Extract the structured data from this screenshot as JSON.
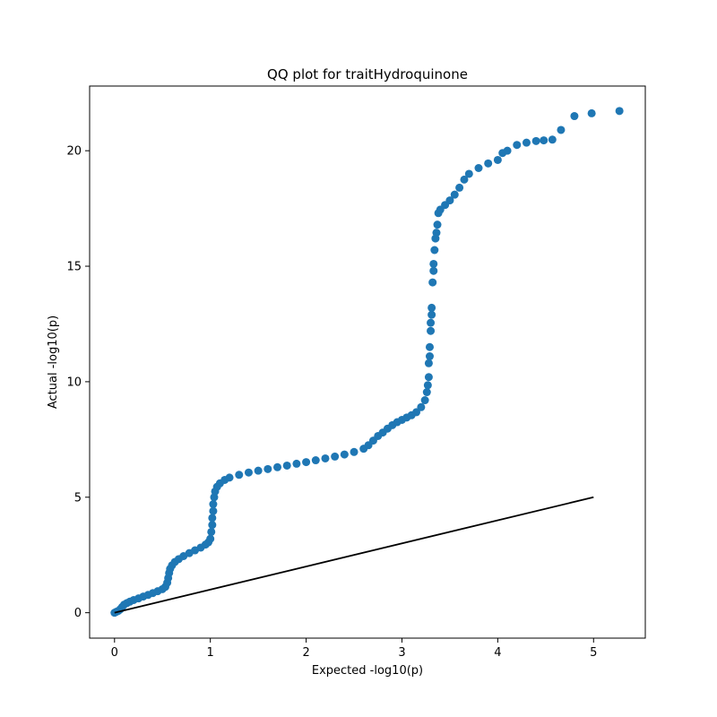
{
  "chart_data": {
    "type": "scatter",
    "title": "QQ plot for traitHydroquinone",
    "xlabel": "Expected -log10(p)",
    "ylabel": "Actual -log10(p)",
    "xlim": [
      -0.26,
      5.54
    ],
    "ylim": [
      -1.1,
      22.8
    ],
    "xticks": [
      0,
      1,
      2,
      3,
      4,
      5
    ],
    "yticks": [
      0,
      5,
      10,
      15,
      20
    ],
    "grid": false,
    "legend": "none",
    "colors": {
      "points": "#1f77b4",
      "reference_line": "#000000",
      "axes": "#000000"
    },
    "reference_line": {
      "x": [
        0,
        5
      ],
      "y": [
        0,
        5
      ]
    },
    "series": [
      {
        "points": [
          [
            0.0,
            0.0
          ],
          [
            0.02,
            0.04
          ],
          [
            0.04,
            0.08
          ],
          [
            0.06,
            0.15
          ],
          [
            0.08,
            0.25
          ],
          [
            0.1,
            0.35
          ],
          [
            0.13,
            0.42
          ],
          [
            0.16,
            0.48
          ],
          [
            0.2,
            0.55
          ],
          [
            0.25,
            0.62
          ],
          [
            0.3,
            0.7
          ],
          [
            0.35,
            0.77
          ],
          [
            0.4,
            0.85
          ],
          [
            0.45,
            0.93
          ],
          [
            0.5,
            1.02
          ],
          [
            0.53,
            1.12
          ],
          [
            0.55,
            1.3
          ],
          [
            0.56,
            1.5
          ],
          [
            0.57,
            1.72
          ],
          [
            0.58,
            1.9
          ],
          [
            0.6,
            2.05
          ],
          [
            0.63,
            2.2
          ],
          [
            0.67,
            2.32
          ],
          [
            0.72,
            2.45
          ],
          [
            0.78,
            2.58
          ],
          [
            0.84,
            2.7
          ],
          [
            0.9,
            2.82
          ],
          [
            0.95,
            2.95
          ],
          [
            0.98,
            3.05
          ],
          [
            1.0,
            3.2
          ],
          [
            1.01,
            3.5
          ],
          [
            1.02,
            3.8
          ],
          [
            1.02,
            4.1
          ],
          [
            1.03,
            4.4
          ],
          [
            1.03,
            4.7
          ],
          [
            1.04,
            5.0
          ],
          [
            1.05,
            5.25
          ],
          [
            1.07,
            5.45
          ],
          [
            1.1,
            5.6
          ],
          [
            1.15,
            5.75
          ],
          [
            1.2,
            5.85
          ],
          [
            1.3,
            5.97
          ],
          [
            1.4,
            6.07
          ],
          [
            1.5,
            6.15
          ],
          [
            1.6,
            6.22
          ],
          [
            1.7,
            6.3
          ],
          [
            1.8,
            6.37
          ],
          [
            1.9,
            6.45
          ],
          [
            2.0,
            6.52
          ],
          [
            2.1,
            6.6
          ],
          [
            2.2,
            6.68
          ],
          [
            2.3,
            6.76
          ],
          [
            2.4,
            6.85
          ],
          [
            2.5,
            6.96
          ],
          [
            2.6,
            7.1
          ],
          [
            2.65,
            7.25
          ],
          [
            2.7,
            7.45
          ],
          [
            2.75,
            7.65
          ],
          [
            2.8,
            7.8
          ],
          [
            2.85,
            7.97
          ],
          [
            2.9,
            8.12
          ],
          [
            2.95,
            8.25
          ],
          [
            3.0,
            8.35
          ],
          [
            3.05,
            8.45
          ],
          [
            3.1,
            8.55
          ],
          [
            3.15,
            8.68
          ],
          [
            3.2,
            8.9
          ],
          [
            3.24,
            9.2
          ],
          [
            3.26,
            9.55
          ],
          [
            3.27,
            9.85
          ],
          [
            3.28,
            10.2
          ],
          [
            3.28,
            10.8
          ],
          [
            3.29,
            11.1
          ],
          [
            3.29,
            11.5
          ],
          [
            3.3,
            12.2
          ],
          [
            3.3,
            12.55
          ],
          [
            3.31,
            12.9
          ],
          [
            3.31,
            13.2
          ],
          [
            3.32,
            14.3
          ],
          [
            3.33,
            14.8
          ],
          [
            3.33,
            15.1
          ],
          [
            3.34,
            15.7
          ],
          [
            3.35,
            16.2
          ],
          [
            3.36,
            16.45
          ],
          [
            3.37,
            16.8
          ],
          [
            3.38,
            17.3
          ],
          [
            3.4,
            17.45
          ],
          [
            3.45,
            17.65
          ],
          [
            3.5,
            17.85
          ],
          [
            3.55,
            18.1
          ],
          [
            3.6,
            18.4
          ],
          [
            3.65,
            18.75
          ],
          [
            3.7,
            19.0
          ],
          [
            3.8,
            19.25
          ],
          [
            3.9,
            19.45
          ],
          [
            4.0,
            19.6
          ],
          [
            4.05,
            19.9
          ],
          [
            4.1,
            20.0
          ],
          [
            4.2,
            20.25
          ],
          [
            4.3,
            20.35
          ],
          [
            4.4,
            20.42
          ],
          [
            4.48,
            20.45
          ],
          [
            4.57,
            20.48
          ],
          [
            4.66,
            20.9
          ],
          [
            4.8,
            21.5
          ],
          [
            4.98,
            21.62
          ],
          [
            5.27,
            21.72
          ]
        ]
      }
    ]
  }
}
